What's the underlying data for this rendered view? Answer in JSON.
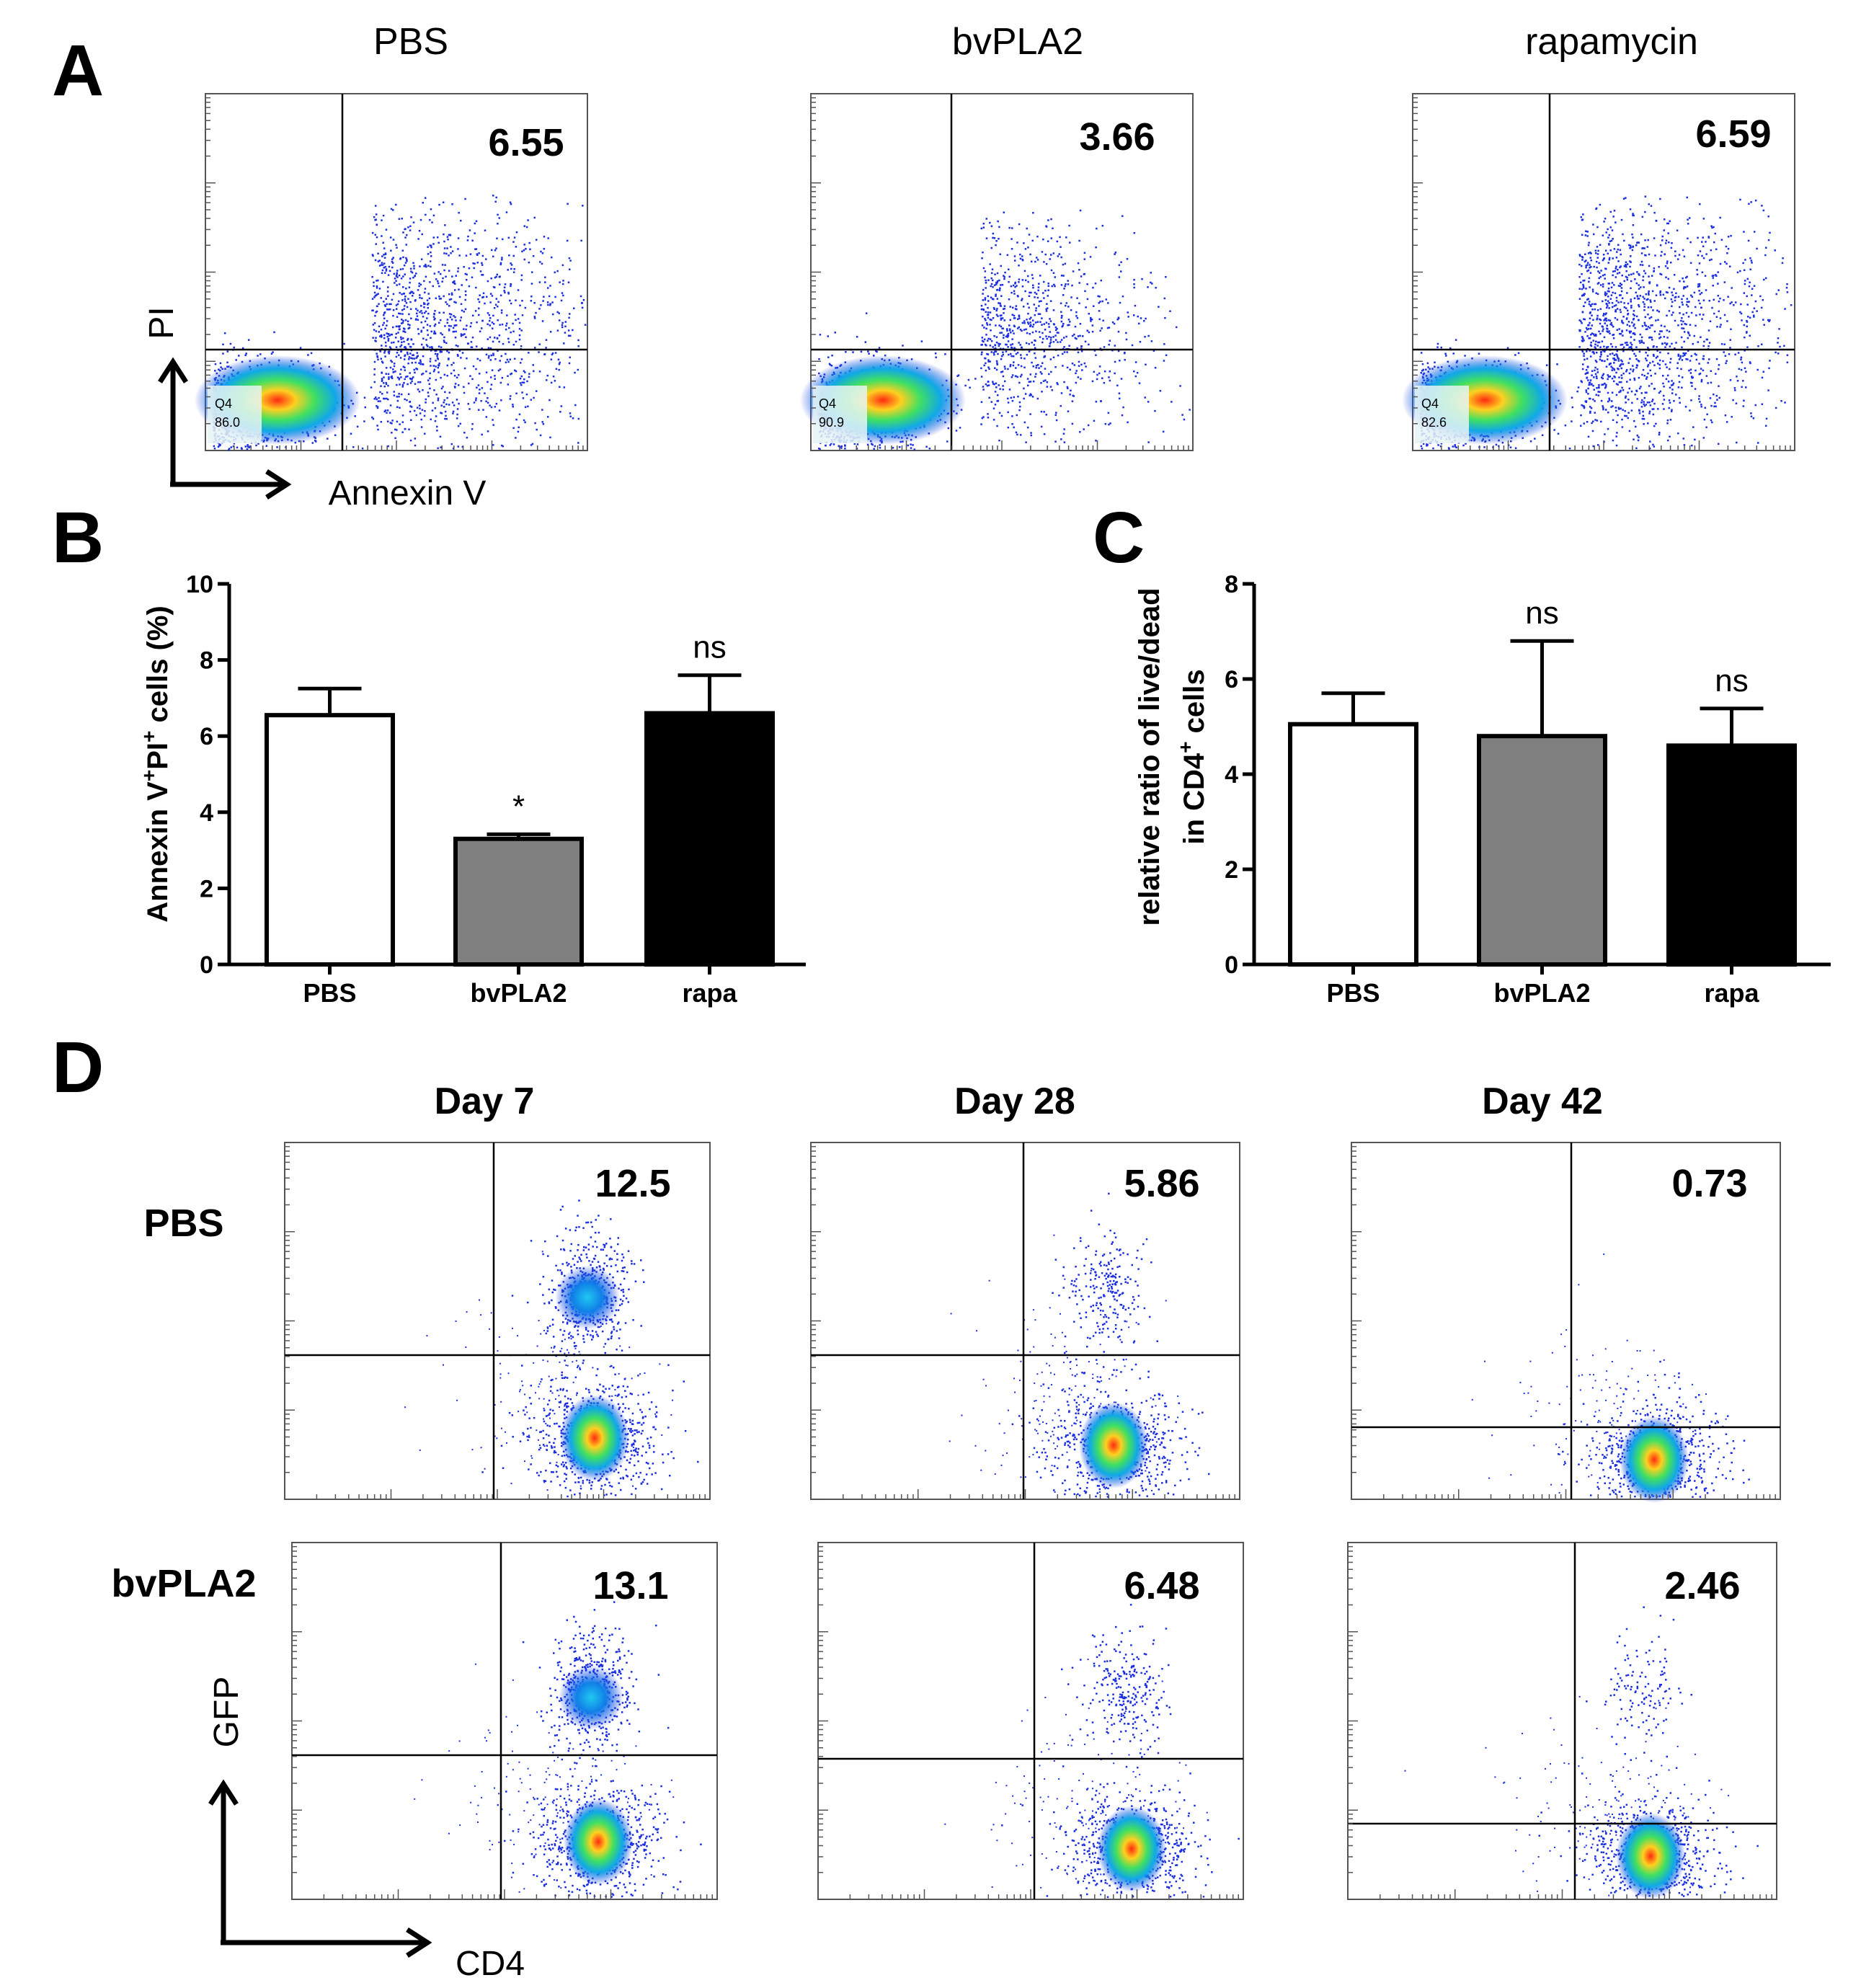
{
  "panel_letters": {
    "a": "A",
    "b": "B",
    "c": "C",
    "d": "D"
  },
  "colors": {
    "bar_pbs": "#ffffff",
    "bar_bvpla2": "#808080",
    "bar_rapa": "#000000",
    "axis": "#000000"
  },
  "chart_data": [
    {
      "type": "scatter",
      "panel": "A",
      "xlabel": "Annexin V",
      "ylabel": "PI",
      "plots": [
        {
          "title": "PBS",
          "quadrant_value": "6.55",
          "gate_label": "Q4",
          "gate_value": "86.0"
        },
        {
          "title": "bvPLA2",
          "quadrant_value": "3.66",
          "gate_label": "Q4",
          "gate_value": "90.9"
        },
        {
          "title": "rapamycin",
          "quadrant_value": "6.59",
          "gate_label": "Q4",
          "gate_value": "82.6"
        }
      ]
    },
    {
      "type": "bar",
      "panel": "B",
      "categories": [
        "PBS",
        "bvPLA2",
        "rapa"
      ],
      "values": [
        6.55,
        3.3,
        6.6
      ],
      "errors": [
        0.7,
        0.12,
        1.0
      ],
      "annotations": [
        "",
        "*",
        "ns"
      ],
      "ylabel_parts": {
        "p1": "Annexin V",
        "sup1": "+",
        "p2": "PI",
        "sup2": "+",
        "p3": " cells  (%)"
      },
      "ylim": [
        0,
        10
      ],
      "yticks": [
        "0",
        "2",
        "4",
        "6",
        "8",
        "10"
      ]
    },
    {
      "type": "bar",
      "panel": "C",
      "categories": [
        "PBS",
        "bvPLA2",
        "rapa"
      ],
      "values": [
        5.05,
        4.8,
        4.6
      ],
      "errors": [
        0.65,
        2.0,
        0.78
      ],
      "annotations": [
        "",
        "ns",
        "ns"
      ],
      "ylabel_line1": "relative ratio of live/dead",
      "ylabel_line2_parts": {
        "p1": "in CD4",
        "sup": "+",
        "p2": " cells"
      },
      "ylim": [
        0,
        8
      ],
      "yticks": [
        "0",
        "2",
        "4",
        "6",
        "8"
      ]
    },
    {
      "type": "scatter",
      "panel": "D",
      "xlabel": "CD4",
      "ylabel": "GFP",
      "columns": [
        "Day 7",
        "Day 28",
        "Day 42"
      ],
      "rows": [
        "PBS",
        "bvPLA2"
      ],
      "quadrant_values": [
        [
          "12.5",
          "5.86",
          "0.73"
        ],
        [
          "13.1",
          "6.48",
          "2.46"
        ]
      ]
    }
  ]
}
